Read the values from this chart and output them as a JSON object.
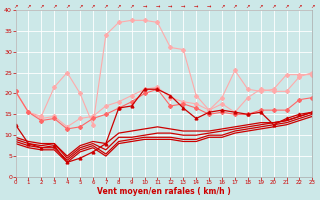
{
  "background_color": "#cce8e8",
  "grid_color": "#ffffff",
  "xlabel": "Vent moyen/en rafales ( km/h )",
  "xlabel_color": "#cc0000",
  "tick_color": "#cc0000",
  "x_ticks": [
    0,
    1,
    2,
    3,
    4,
    5,
    6,
    7,
    8,
    9,
    10,
    11,
    12,
    13,
    14,
    15,
    16,
    17,
    18,
    19,
    20,
    21,
    22,
    23
  ],
  "ylim": [
    0,
    40
  ],
  "xlim": [
    0,
    23
  ],
  "yticks": [
    0,
    5,
    10,
    15,
    20,
    25,
    30,
    35,
    40
  ],
  "lines": [
    {
      "color": "#ffaaaa",
      "values": [
        20.5,
        15.5,
        14.5,
        21.5,
        25.0,
        20.0,
        12.5,
        34.0,
        37.0,
        37.5,
        37.5,
        37.0,
        31.0,
        30.5,
        19.5,
        16.0,
        19.0,
        25.5,
        21.0,
        20.5,
        21.0,
        24.5,
        24.5,
        24.5
      ],
      "marker": "D",
      "markersize": 2.0,
      "linewidth": 0.8
    },
    {
      "color": "#ffaaaa",
      "values": [
        20.5,
        15.5,
        14.0,
        14.5,
        12.0,
        14.0,
        14.5,
        17.0,
        18.0,
        19.5,
        21.0,
        21.5,
        19.0,
        18.0,
        17.5,
        16.0,
        17.5,
        15.5,
        19.0,
        21.0,
        20.5,
        20.5,
        24.0,
        25.0
      ],
      "marker": "D",
      "markersize": 2.0,
      "linewidth": 0.8
    },
    {
      "color": "#ff6666",
      "values": [
        20.5,
        15.5,
        13.5,
        14.0,
        11.5,
        12.0,
        14.0,
        15.0,
        16.5,
        18.0,
        20.0,
        21.0,
        17.0,
        17.5,
        16.5,
        15.0,
        15.5,
        15.0,
        15.0,
        16.0,
        16.0,
        16.0,
        18.5,
        19.0
      ],
      "marker": "D",
      "markersize": 2.0,
      "linewidth": 0.8
    },
    {
      "color": "#cc0000",
      "values": [
        12.5,
        8.0,
        7.0,
        7.5,
        3.5,
        4.5,
        6.0,
        8.0,
        16.5,
        17.0,
        21.0,
        21.0,
        19.5,
        16.5,
        14.0,
        15.5,
        16.0,
        15.5,
        15.0,
        15.5,
        12.5,
        14.0,
        15.0,
        15.5
      ],
      "marker": "^",
      "markersize": 2.0,
      "linewidth": 0.9
    },
    {
      "color": "#cc0000",
      "values": [
        9.5,
        8.5,
        8.0,
        8.0,
        5.0,
        7.5,
        8.5,
        8.0,
        10.5,
        11.0,
        11.5,
        12.0,
        11.5,
        11.0,
        11.0,
        11.0,
        11.5,
        12.0,
        12.5,
        13.0,
        13.0,
        13.5,
        14.5,
        15.5
      ],
      "marker": null,
      "markersize": 0,
      "linewidth": 0.9
    },
    {
      "color": "#cc0000",
      "values": [
        9.0,
        8.0,
        7.5,
        8.0,
        4.5,
        7.0,
        8.0,
        6.5,
        9.5,
        9.5,
        10.0,
        10.5,
        10.5,
        10.0,
        10.0,
        10.5,
        11.0,
        11.5,
        12.0,
        12.5,
        13.0,
        13.5,
        14.5,
        15.5
      ],
      "marker": null,
      "markersize": 0,
      "linewidth": 0.9
    },
    {
      "color": "#cc0000",
      "values": [
        8.5,
        7.5,
        7.0,
        7.0,
        4.0,
        6.5,
        7.5,
        5.5,
        8.5,
        9.0,
        9.5,
        9.5,
        9.5,
        9.0,
        9.0,
        10.0,
        10.0,
        11.0,
        11.5,
        12.0,
        12.5,
        13.0,
        14.0,
        15.0
      ],
      "marker": null,
      "markersize": 0,
      "linewidth": 0.9
    },
    {
      "color": "#cc0000",
      "values": [
        8.0,
        7.0,
        6.5,
        6.5,
        3.5,
        6.0,
        7.0,
        5.0,
        8.0,
        8.5,
        9.0,
        9.0,
        9.0,
        8.5,
        8.5,
        9.5,
        9.5,
        10.5,
        11.0,
        11.5,
        12.0,
        12.5,
        13.5,
        14.5
      ],
      "marker": null,
      "markersize": 0,
      "linewidth": 0.9
    }
  ],
  "wind_direction_symbols": [
    "↗",
    "↗",
    "↗",
    "↗",
    "↗",
    "↗",
    "↗",
    "↗",
    "↗",
    "↗",
    "→",
    "→",
    "→",
    "→",
    "→",
    "→",
    "↗",
    "↗",
    "↗",
    "↗",
    "↗",
    "↗",
    "↗",
    "↗"
  ]
}
